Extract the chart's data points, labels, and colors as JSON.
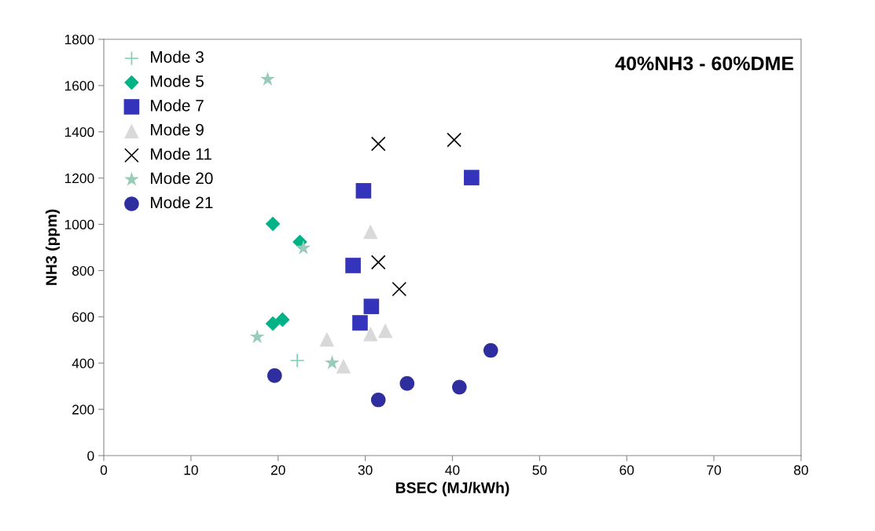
{
  "chart_data": {
    "type": "scatter",
    "title": "40%NH3 - 60%DME",
    "xlabel": "BSEC (MJ/kWh)",
    "ylabel": "NH3 (ppm)",
    "xlim": [
      0,
      80
    ],
    "xticks": [
      0,
      10,
      20,
      30,
      40,
      50,
      60,
      70,
      80
    ],
    "ylim": [
      0,
      1800
    ],
    "yticks": [
      0,
      200,
      400,
      600,
      800,
      1000,
      1200,
      1400,
      1600,
      1800
    ],
    "grid": false,
    "legend": "top left",
    "series": [
      {
        "name": "Mode 3",
        "color": "#7fcfb0",
        "marker": "cross",
        "x": [
          22.2
        ],
        "values": [
          411
        ]
      },
      {
        "name": "Mode 5",
        "color": "#00b386",
        "marker": "diamond",
        "x": [
          19.4,
          22.5,
          19.4,
          20.5
        ],
        "values": [
          1002,
          924,
          571,
          588
        ]
      },
      {
        "name": "Mode 7",
        "color": "#3333bb",
        "marker": "square",
        "x": [
          29.8,
          42.2,
          28.6,
          30.7,
          29.4
        ],
        "values": [
          1145,
          1202,
          822,
          645,
          574
        ]
      },
      {
        "name": "Mode 9",
        "color": "#d9d9d9",
        "marker": "triangle",
        "x": [
          30.6,
          25.6,
          30.6,
          32.3,
          27.5
        ],
        "values": [
          968,
          503,
          526,
          540,
          387
        ]
      },
      {
        "name": "Mode 11",
        "color": "#000000",
        "marker": "x",
        "x": [
          31.5,
          40.2,
          31.5,
          33.9
        ],
        "values": [
          1348,
          1365,
          836,
          720
        ]
      },
      {
        "name": "Mode 20",
        "color": "#99ccb8",
        "marker": "star",
        "x": [
          18.8,
          22.9,
          17.6,
          26.2
        ],
        "values": [
          1627,
          897,
          513,
          401
        ]
      },
      {
        "name": "Mode 21",
        "color": "#2e2e9e",
        "marker": "circle",
        "x": [
          19.6,
          31.5,
          34.8,
          40.8,
          44.4
        ],
        "values": [
          346,
          241,
          312,
          296,
          455
        ]
      }
    ]
  }
}
